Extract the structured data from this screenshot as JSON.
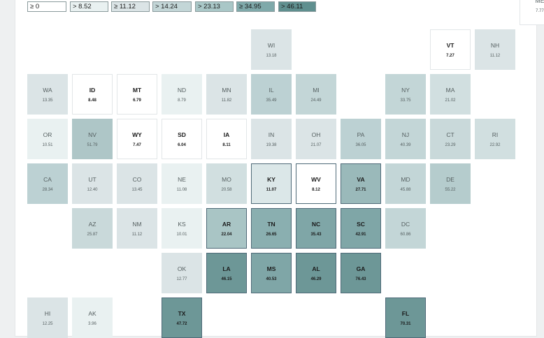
{
  "legend": [
    {
      "label": "≥ 0",
      "color": "#ffffff"
    },
    {
      "label": "> 8.52",
      "color": "#e9f1f1"
    },
    {
      "label": "≥ 11.12",
      "color": "#dbe4e6"
    },
    {
      "label": "> 14.24",
      "color": "#c3d6d7"
    },
    {
      "label": "> 23.13",
      "color": "#a9c7c7"
    },
    {
      "label": "≥ 34.95",
      "color": "#7fa9aa"
    },
    {
      "label": "> 46.11",
      "color": "#5f8f8f"
    }
  ],
  "states": [
    {
      "abbr": "ME",
      "value": "7.77",
      "color": "#ffffff",
      "bold": false,
      "outline": false
    },
    {
      "abbr": "WI",
      "value": "13.18",
      "color": "#dbe4e6",
      "bold": false,
      "outline": false
    },
    {
      "abbr": "VT",
      "value": "7.27",
      "color": "#ffffff",
      "bold": true,
      "outline": false
    },
    {
      "abbr": "NH",
      "value": "11.12",
      "color": "#dbe4e6",
      "bold": false,
      "outline": false
    },
    {
      "abbr": "WA",
      "value": "13.35",
      "color": "#dbe4e6",
      "bold": false,
      "outline": false
    },
    {
      "abbr": "ID",
      "value": "8.48",
      "color": "#ffffff",
      "bold": true,
      "outline": false
    },
    {
      "abbr": "MT",
      "value": "6.79",
      "color": "#ffffff",
      "bold": true,
      "outline": false
    },
    {
      "abbr": "ND",
      "value": "8.79",
      "color": "#e9f1f1",
      "bold": false,
      "outline": false
    },
    {
      "abbr": "MN",
      "value": "11.82",
      "color": "#dbe4e6",
      "bold": false,
      "outline": false
    },
    {
      "abbr": "IL",
      "value": "35.49",
      "color": "#bcd1d3",
      "bold": false,
      "outline": false
    },
    {
      "abbr": "MI",
      "value": "24.49",
      "color": "#c3d6d7",
      "bold": false,
      "outline": false
    },
    {
      "abbr": "NY",
      "value": "33.75",
      "color": "#c3d6d7",
      "bold": false,
      "outline": false
    },
    {
      "abbr": "MA",
      "value": "21.02",
      "color": "#d1dfe0",
      "bold": false,
      "outline": false
    },
    {
      "abbr": "OR",
      "value": "10.51",
      "color": "#e9f1f1",
      "bold": false,
      "outline": false
    },
    {
      "abbr": "NV",
      "value": "51.79",
      "color": "#aec6c7",
      "bold": false,
      "outline": false
    },
    {
      "abbr": "WY",
      "value": "7.47",
      "color": "#ffffff",
      "bold": true,
      "outline": false
    },
    {
      "abbr": "SD",
      "value": "6.04",
      "color": "#ffffff",
      "bold": true,
      "outline": false
    },
    {
      "abbr": "IA",
      "value": "8.11",
      "color": "#ffffff",
      "bold": true,
      "outline": false
    },
    {
      "abbr": "IN",
      "value": "19.38",
      "color": "#dbe4e6",
      "bold": false,
      "outline": false
    },
    {
      "abbr": "OH",
      "value": "21.07",
      "color": "#dbe4e6",
      "bold": false,
      "outline": false
    },
    {
      "abbr": "PA",
      "value": "36.05",
      "color": "#bcd1d3",
      "bold": false,
      "outline": false
    },
    {
      "abbr": "NJ",
      "value": "40.39",
      "color": "#c3d6d7",
      "bold": false,
      "outline": false
    },
    {
      "abbr": "CT",
      "value": "23.29",
      "color": "#c9d9da",
      "bold": false,
      "outline": false
    },
    {
      "abbr": "RI",
      "value": "22.92",
      "color": "#d1dfe0",
      "bold": false,
      "outline": false
    },
    {
      "abbr": "CA",
      "value": "28.34",
      "color": "#bcd1d3",
      "bold": false,
      "outline": false
    },
    {
      "abbr": "UT",
      "value": "12.40",
      "color": "#dbe4e6",
      "bold": false,
      "outline": false
    },
    {
      "abbr": "CO",
      "value": "13.45",
      "color": "#dbe4e6",
      "bold": false,
      "outline": false
    },
    {
      "abbr": "NE",
      "value": "11.08",
      "color": "#e9f1f1",
      "bold": false,
      "outline": false
    },
    {
      "abbr": "MO",
      "value": "20.58",
      "color": "#d1dfe0",
      "bold": false,
      "outline": false
    },
    {
      "abbr": "KY",
      "value": "11.07",
      "color": "#dbe7e8",
      "bold": true,
      "outline": true
    },
    {
      "abbr": "WV",
      "value": "8.12",
      "color": "#ffffff",
      "bold": true,
      "outline": true
    },
    {
      "abbr": "VA",
      "value": "27.71",
      "color": "#9ab9ba",
      "bold": true,
      "outline": true
    },
    {
      "abbr": "MD",
      "value": "45.88",
      "color": "#c3d6d7",
      "bold": false,
      "outline": false
    },
    {
      "abbr": "DE",
      "value": "55.22",
      "color": "#b5cccd",
      "bold": false,
      "outline": false
    },
    {
      "abbr": "AZ",
      "value": "25.87",
      "color": "#c9d9da",
      "bold": false,
      "outline": false
    },
    {
      "abbr": "NM",
      "value": "11.12",
      "color": "#dbe4e6",
      "bold": false,
      "outline": false
    },
    {
      "abbr": "KS",
      "value": "10.01",
      "color": "#e9f1f1",
      "bold": false,
      "outline": false
    },
    {
      "abbr": "AR",
      "value": "22.04",
      "color": "#a9c5c5",
      "bold": true,
      "outline": true
    },
    {
      "abbr": "TN",
      "value": "26.65",
      "color": "#8aafb0",
      "bold": true,
      "outline": true
    },
    {
      "abbr": "NC",
      "value": "35.43",
      "color": "#7fa6a7",
      "bold": true,
      "outline": true
    },
    {
      "abbr": "SC",
      "value": "42.91",
      "color": "#7fa6a7",
      "bold": true,
      "outline": true
    },
    {
      "abbr": "DC",
      "value": "60.86",
      "color": "#c3d6d7",
      "bold": false,
      "outline": false
    },
    {
      "abbr": "OK",
      "value": "12.77",
      "color": "#dbe4e6",
      "bold": false,
      "outline": false
    },
    {
      "abbr": "LA",
      "value": "46.15",
      "color": "#6d9797",
      "bold": true,
      "outline": true
    },
    {
      "abbr": "MS",
      "value": "40.53",
      "color": "#7fa6a7",
      "bold": true,
      "outline": true
    },
    {
      "abbr": "AL",
      "value": "46.29",
      "color": "#6d9797",
      "bold": true,
      "outline": true
    },
    {
      "abbr": "GA",
      "value": "76.43",
      "color": "#6d9797",
      "bold": true,
      "outline": true
    },
    {
      "abbr": "HI",
      "value": "12.25",
      "color": "#dbe4e6",
      "bold": false,
      "outline": false
    },
    {
      "abbr": "AK",
      "value": "3.96",
      "color": "#e9f1f1",
      "bold": false,
      "outline": false
    },
    {
      "abbr": "TX",
      "value": "47.72",
      "color": "#6d9797",
      "bold": true,
      "outline": true
    },
    {
      "abbr": "FL",
      "value": "70.31",
      "color": "#6d9797",
      "bold": true,
      "outline": true
    }
  ]
}
